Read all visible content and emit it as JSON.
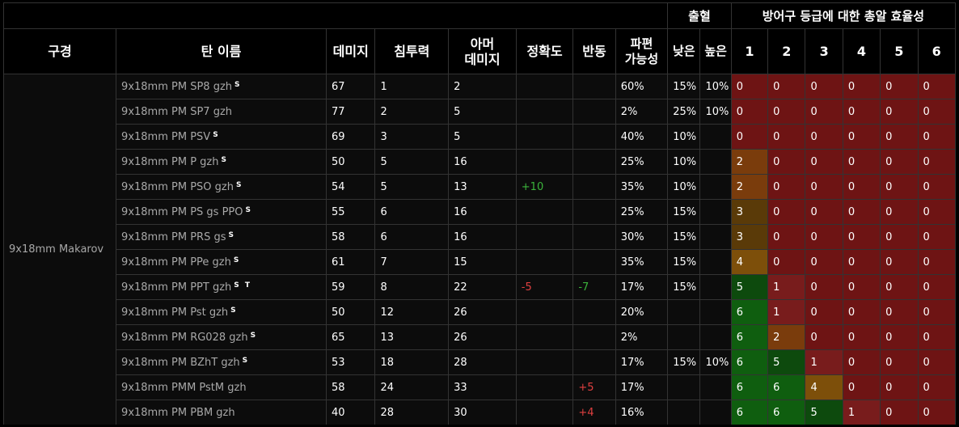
{
  "header": {
    "bleed": "출혈",
    "armor_group": "방어구 등급에 대한 총알 효율성",
    "caliber": "구경",
    "name": "탄 이름",
    "damage": "데미지",
    "penetration": "침투력",
    "armor_damage_line1": "아머",
    "armor_damage_line2": "데미지",
    "accuracy": "정확도",
    "recoil": "반동",
    "frag_line1": "파편",
    "frag_line2": "가능성",
    "bleed_low": "낮은",
    "bleed_high": "높은",
    "classes": [
      "1",
      "2",
      "3",
      "4",
      "5",
      "6"
    ]
  },
  "caliber_label": "9x18mm Makarov",
  "effectiveness_colors": {
    "0": "#6e1414",
    "1": "#781c1c",
    "2": "#7a3c0c",
    "3": "#5a3a08",
    "4": "#7d4f0a",
    "5": "#0d4a0d",
    "6": "#0f5e0f"
  },
  "chart_data": {
    "type": "table",
    "columns": [
      "구경",
      "탄 이름",
      "데미지",
      "침투력",
      "아머 데미지",
      "정확도",
      "반동",
      "파편 가능성",
      "출혈 낮은",
      "출혈 높은",
      "1",
      "2",
      "3",
      "4",
      "5",
      "6"
    ],
    "rows": [
      {
        "name": "9x18mm PM SP8 gzh",
        "tag": "S",
        "damage": "67",
        "pen": "1",
        "armor": "2",
        "acc": "",
        "recoil": "",
        "frag": "60%",
        "lo": "15%",
        "hi": "10%",
        "eff": [
          0,
          0,
          0,
          0,
          0,
          0
        ]
      },
      {
        "name": "9x18mm PM SP7 gzh",
        "tag": "",
        "damage": "77",
        "pen": "2",
        "armor": "5",
        "acc": "",
        "recoil": "",
        "frag": "2%",
        "lo": "25%",
        "hi": "10%",
        "eff": [
          0,
          0,
          0,
          0,
          0,
          0
        ]
      },
      {
        "name": "9x18mm PM PSV",
        "tag": "S",
        "damage": "69",
        "pen": "3",
        "armor": "5",
        "acc": "",
        "recoil": "",
        "frag": "40%",
        "lo": "10%",
        "hi": "",
        "eff": [
          0,
          0,
          0,
          0,
          0,
          0
        ]
      },
      {
        "name": "9x18mm PM P gzh",
        "tag": "S",
        "damage": "50",
        "pen": "5",
        "armor": "16",
        "acc": "",
        "recoil": "",
        "frag": "25%",
        "lo": "10%",
        "hi": "",
        "eff": [
          2,
          0,
          0,
          0,
          0,
          0
        ]
      },
      {
        "name": "9x18mm PM PSO gzh",
        "tag": "S",
        "damage": "54",
        "pen": "5",
        "armor": "13",
        "acc": "+10",
        "recoil": "",
        "frag": "35%",
        "lo": "10%",
        "hi": "",
        "eff": [
          2,
          0,
          0,
          0,
          0,
          0
        ]
      },
      {
        "name": "9x18mm PM PS gs PPO",
        "tag": "S",
        "damage": "55",
        "pen": "6",
        "armor": "16",
        "acc": "",
        "recoil": "",
        "frag": "25%",
        "lo": "15%",
        "hi": "",
        "eff": [
          3,
          0,
          0,
          0,
          0,
          0
        ]
      },
      {
        "name": "9x18mm PM PRS gs",
        "tag": "S",
        "damage": "58",
        "pen": "6",
        "armor": "16",
        "acc": "",
        "recoil": "",
        "frag": "30%",
        "lo": "15%",
        "hi": "",
        "eff": [
          3,
          0,
          0,
          0,
          0,
          0
        ]
      },
      {
        "name": "9x18mm PM PPe gzh",
        "tag": "S",
        "damage": "61",
        "pen": "7",
        "armor": "15",
        "acc": "",
        "recoil": "",
        "frag": "35%",
        "lo": "15%",
        "hi": "",
        "eff": [
          4,
          0,
          0,
          0,
          0,
          0
        ]
      },
      {
        "name": "9x18mm PM PPT gzh",
        "tag": "S T",
        "damage": "59",
        "pen": "8",
        "armor": "22",
        "acc": "-5",
        "recoil": "-7",
        "frag": "17%",
        "lo": "15%",
        "hi": "",
        "eff": [
          5,
          1,
          0,
          0,
          0,
          0
        ]
      },
      {
        "name": "9x18mm PM Pst gzh",
        "tag": "S",
        "damage": "50",
        "pen": "12",
        "armor": "26",
        "acc": "",
        "recoil": "",
        "frag": "20%",
        "lo": "",
        "hi": "",
        "eff": [
          6,
          1,
          0,
          0,
          0,
          0
        ]
      },
      {
        "name": "9x18mm PM RG028 gzh",
        "tag": "S",
        "damage": "65",
        "pen": "13",
        "armor": "26",
        "acc": "",
        "recoil": "",
        "frag": "2%",
        "lo": "",
        "hi": "",
        "eff": [
          6,
          2,
          0,
          0,
          0,
          0
        ]
      },
      {
        "name": "9x18mm PM BZhT gzh",
        "tag": "S",
        "damage": "53",
        "pen": "18",
        "armor": "28",
        "acc": "",
        "recoil": "",
        "frag": "17%",
        "lo": "15%",
        "hi": "10%",
        "eff": [
          6,
          5,
          1,
          0,
          0,
          0
        ]
      },
      {
        "name": "9x18mm PMM PstM gzh",
        "tag": "",
        "damage": "58",
        "pen": "24",
        "armor": "33",
        "acc": "",
        "recoil": "+5",
        "frag": "17%",
        "lo": "",
        "hi": "",
        "eff": [
          6,
          6,
          4,
          0,
          0,
          0
        ]
      },
      {
        "name": "9x18mm PM PBM gzh",
        "tag": "",
        "damage": "40",
        "pen": "28",
        "armor": "30",
        "acc": "",
        "recoil": "+4",
        "frag": "16%",
        "lo": "",
        "hi": "",
        "eff": [
          6,
          6,
          5,
          1,
          0,
          0
        ]
      }
    ]
  }
}
